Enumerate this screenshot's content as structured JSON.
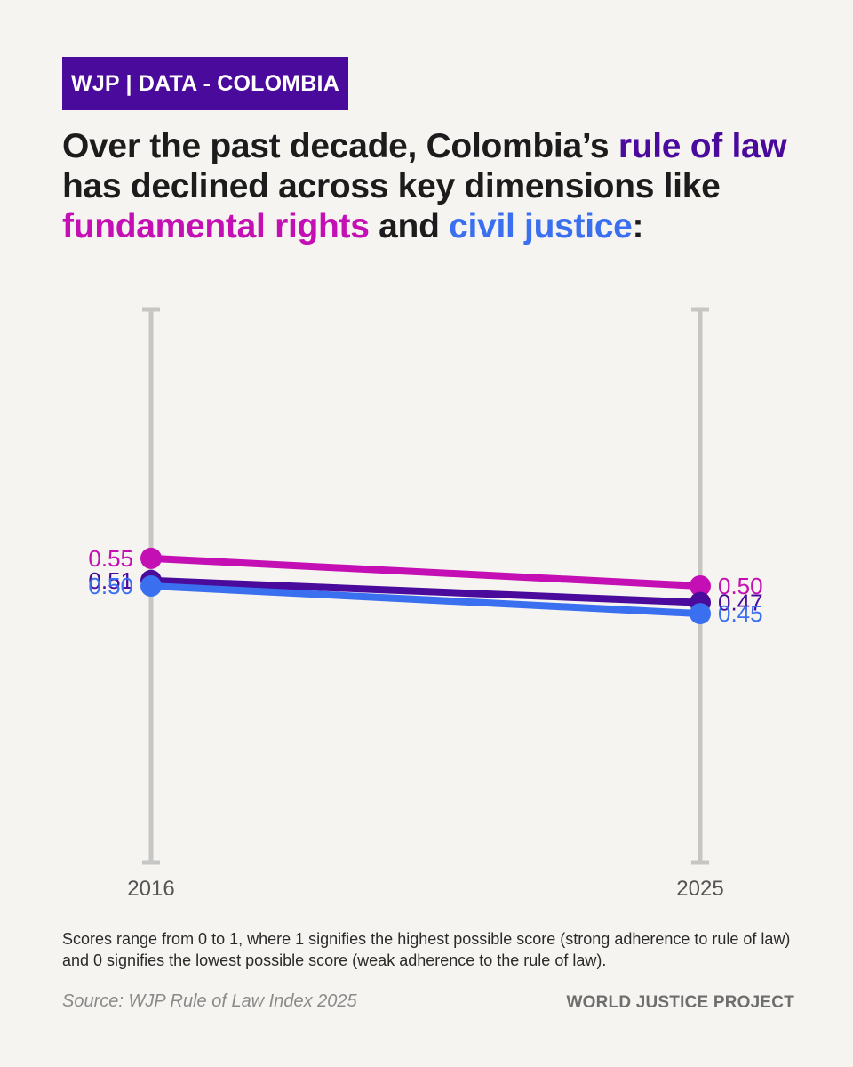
{
  "tag": {
    "label": "WJP | DATA - COLOMBIA",
    "color": "#4a0a9c"
  },
  "headline": {
    "part1": "Over the past decade, Colombia’s ",
    "rule_of_law": "rule of law",
    "part2": " has declined across key dimensions like ",
    "fundamental_rights": "fundamental rights",
    "part3": " and ",
    "civil_justice": "civil justice",
    "part4": ":"
  },
  "chart_data": {
    "type": "line",
    "x": [
      "2016",
      "2025"
    ],
    "ylim": [
      0,
      1
    ],
    "grid": false,
    "series": [
      {
        "key": "fundamental_rights",
        "color": "#c30fb3",
        "values": [
          0.55,
          0.5
        ],
        "labels": [
          "0.55",
          "0.50"
        ]
      },
      {
        "key": "rule_of_law",
        "color": "#4a0a9c",
        "values": [
          0.51,
          0.47
        ],
        "labels": [
          "0.51",
          "0.47"
        ]
      },
      {
        "key": "civil_justice",
        "color": "#3a6ff0",
        "values": [
          0.5,
          0.45
        ],
        "labels": [
          "0.50",
          "0.45"
        ]
      }
    ]
  },
  "note": "Scores range from 0 to 1, where 1 signifies the highest possible score (strong adherence to rule of law) and 0 signifies the lowest possible score (weak adherence to the rule of law).",
  "source": "Source: WJP Rule of Law Index 2025",
  "brand": "WORLD JUSTICE PROJECT"
}
